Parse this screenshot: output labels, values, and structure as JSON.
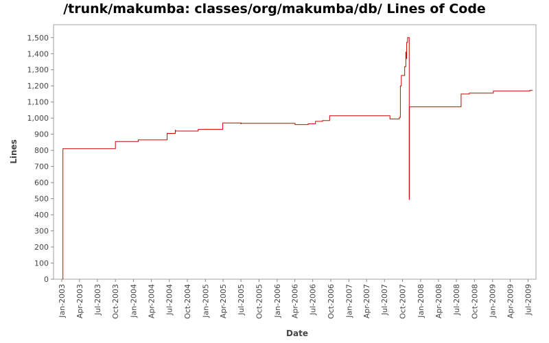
{
  "chart_data": {
    "type": "line",
    "title": "/trunk/makumba: classes/org/makumba/db/ Lines of Code",
    "xlabel": "Date",
    "ylabel": "Lines",
    "ylim": [
      0,
      1580
    ],
    "xlim": [
      "2002-11-20",
      "2009-08-10"
    ],
    "grid": false,
    "y_ticks": [
      0,
      100,
      200,
      300,
      400,
      500,
      600,
      700,
      800,
      900,
      1000,
      1100,
      1200,
      1300,
      1400,
      1500
    ],
    "y_tick_labels": [
      "0",
      "100",
      "200",
      "300",
      "400",
      "500",
      "600",
      "700",
      "800",
      "900",
      "1,000",
      "1,100",
      "1,200",
      "1,300",
      "1,400",
      "1,500"
    ],
    "x_ticks": [
      "2003-01-01",
      "2003-04-01",
      "2003-07-01",
      "2003-10-01",
      "2004-01-01",
      "2004-04-01",
      "2004-07-01",
      "2004-10-01",
      "2005-01-01",
      "2005-04-01",
      "2005-07-01",
      "2005-10-01",
      "2006-01-01",
      "2006-04-01",
      "2006-07-01",
      "2006-10-01",
      "2007-01-01",
      "2007-04-01",
      "2007-07-01",
      "2007-10-01",
      "2008-01-01",
      "2008-04-01",
      "2008-07-01",
      "2008-10-01",
      "2009-01-01",
      "2009-04-01",
      "2009-07-01"
    ],
    "x_tick_labels": [
      "Jan-2003",
      "Apr-2003",
      "Jul-2003",
      "Oct-2003",
      "Jan-2004",
      "Apr-2004",
      "Jul-2004",
      "Oct-2004",
      "Jan-2005",
      "Apr-2005",
      "Jul-2005",
      "Oct-2005",
      "Jan-2006",
      "Apr-2006",
      "Jul-2006",
      "Oct-2006",
      "Jan-2007",
      "Apr-2007",
      "Jul-2007",
      "Oct-2007",
      "Jan-2008",
      "Apr-2008",
      "Jul-2008",
      "Oct-2008",
      "Jan-2009",
      "Apr-2009",
      "Jul-2009"
    ],
    "line_color": "#cc0000",
    "series": [
      {
        "x": [
          "2003-01-06",
          "2003-01-07",
          "2003-10-01",
          "2004-01-25",
          "2004-05-20",
          "2004-06-20",
          "2004-07-30",
          "2004-08-01",
          "2004-08-02",
          "2004-11-25",
          "2005-03-30",
          "2005-06-29",
          "2005-06-30",
          "2005-07-01",
          "2005-07-02",
          "2006-04-01",
          "2006-04-02",
          "2006-06-08",
          "2006-07-15",
          "2006-08-20",
          "2006-09-18",
          "2006-09-25",
          "2007-07-28",
          "2007-07-29",
          "2007-09-15",
          "2007-09-20",
          "2007-09-25",
          "2007-10-10",
          "2007-10-12",
          "2007-10-18",
          "2007-10-20",
          "2007-10-22",
          "2007-10-25",
          "2007-10-27",
          "2007-11-03",
          "2007-11-04",
          "2007-11-05",
          "2008-07-25",
          "2008-09-05",
          "2008-12-20",
          "2009-01-05",
          "2009-06-30",
          "2009-07-10",
          "2009-07-25"
        ],
        "y": [
          0,
          810,
          855,
          865,
          865,
          905,
          905,
          925,
          920,
          930,
          970,
          970,
          965,
          970,
          968,
          968,
          960,
          965,
          980,
          985,
          985,
          1015,
          1015,
          995,
          1005,
          1200,
          1265,
          1265,
          1320,
          1410,
          1370,
          1470,
          1470,
          1500,
          1500,
          495,
          1070,
          1150,
          1155,
          1155,
          1168,
          1168,
          1172,
          1172
        ]
      }
    ]
  }
}
